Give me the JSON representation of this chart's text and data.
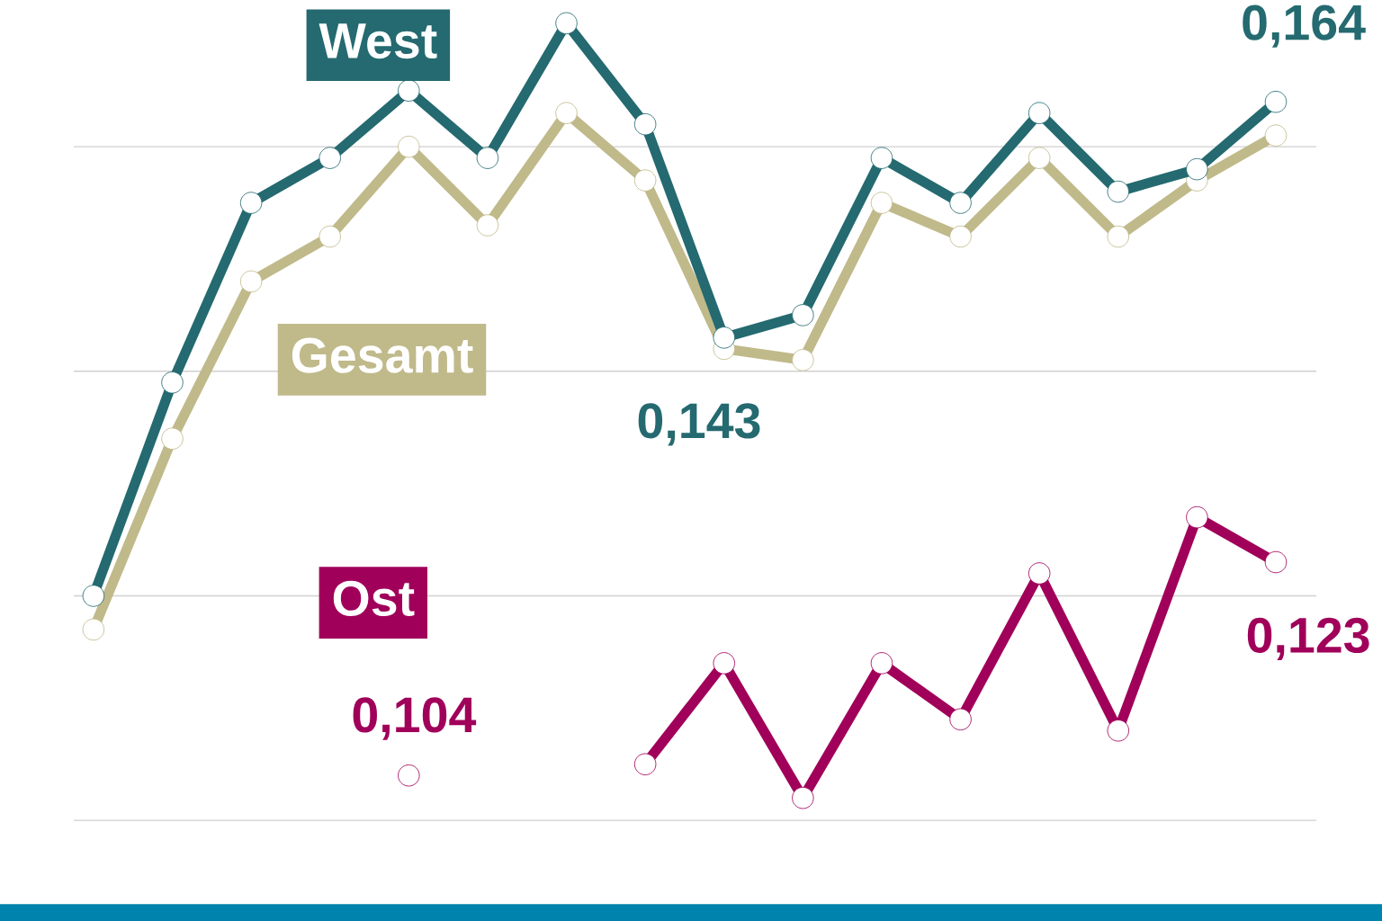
{
  "chart_data": {
    "type": "line",
    "categories": [
      null,
      null,
      null,
      null,
      null,
      null,
      null,
      null,
      null,
      null,
      null,
      null,
      null,
      null,
      null,
      null
    ],
    "series": [
      {
        "name": "West",
        "color": "#246a70",
        "values": [
          0.12,
          0.139,
          0.155,
          0.159,
          0.165,
          0.159,
          0.171,
          0.162,
          0.143,
          0.145,
          0.159,
          0.155,
          0.163,
          0.156,
          0.158,
          0.164
        ],
        "value_labels": [
          null,
          null,
          null,
          null,
          null,
          null,
          null,
          null,
          "0,143",
          null,
          null,
          null,
          null,
          null,
          null,
          "0,164"
        ]
      },
      {
        "name": "Gesamt",
        "color": "#c0b98a",
        "values": [
          0.117,
          0.134,
          0.148,
          0.152,
          0.16,
          0.153,
          0.163,
          0.157,
          0.142,
          0.141,
          0.155,
          0.152,
          0.159,
          0.152,
          0.157,
          0.161
        ]
      },
      {
        "name": "Ost",
        "color": "#a0005a",
        "values": [
          null,
          null,
          null,
          null,
          0.104,
          null,
          null,
          0.105,
          0.114,
          0.102,
          0.114,
          0.109,
          0.122,
          0.108,
          0.127,
          0.123
        ],
        "value_labels": [
          null,
          null,
          null,
          null,
          "0,104",
          null,
          null,
          null,
          null,
          null,
          null,
          null,
          null,
          null,
          null,
          "0,123"
        ]
      }
    ],
    "yticks": [
      {
        "value": 0.1,
        "label": null
      },
      {
        "value": 0.12,
        "label": null
      },
      {
        "value": 0.14,
        "label": null
      },
      {
        "value": 0.16,
        "label": null
      }
    ],
    "grid": "y",
    "legend": false,
    "marker": "circle",
    "line_style": "solid"
  }
}
